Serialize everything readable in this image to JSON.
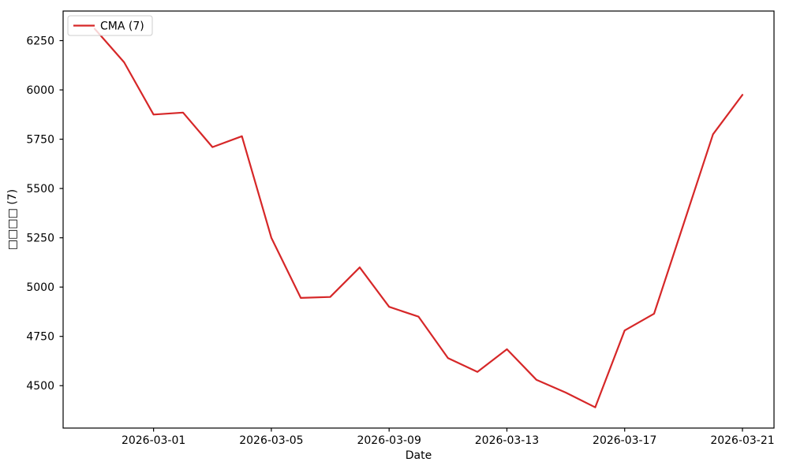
{
  "figure": {
    "background": "#ffffff",
    "spine_color": "#000000"
  },
  "chart_data": {
    "type": "line",
    "title": "",
    "xlabel": "Date",
    "ylabel": "□□□□ (7)",
    "x": [
      "2026-02-27",
      "2026-02-28",
      "2026-03-01",
      "2026-03-02",
      "2026-03-03",
      "2026-03-04",
      "2026-03-05",
      "2026-03-06",
      "2026-03-07",
      "2026-03-08",
      "2026-03-09",
      "2026-03-10",
      "2026-03-11",
      "2026-03-12",
      "2026-03-13",
      "2026-03-14",
      "2026-03-15",
      "2026-03-16",
      "2026-03-17",
      "2026-03-18",
      "2026-03-19",
      "2026-03-20",
      "2026-03-21"
    ],
    "series": [
      {
        "name": "CMA (7)",
        "color": "#d62728",
        "values": [
          6310,
          6140,
          5875,
          5885,
          5710,
          5765,
          5250,
          4945,
          4950,
          5100,
          4900,
          4850,
          4640,
          4570,
          4685,
          4530,
          4465,
          4390,
          4780,
          4865,
          5320,
          5775,
          5975
        ]
      }
    ],
    "xticks": [
      "2026-03-01",
      "2026-03-05",
      "2026-03-09",
      "2026-03-13",
      "2026-03-17",
      "2026-03-21"
    ],
    "yticks": [
      4500,
      4750,
      5000,
      5250,
      5500,
      5750,
      6000,
      6250
    ],
    "ylim": [
      4285,
      6400
    ],
    "grid": false,
    "legend": {
      "position": "upper left",
      "labels": [
        "CMA (7)"
      ],
      "border_color": "#cccccc",
      "background": "rgba(255,255,255,0.8)"
    }
  }
}
